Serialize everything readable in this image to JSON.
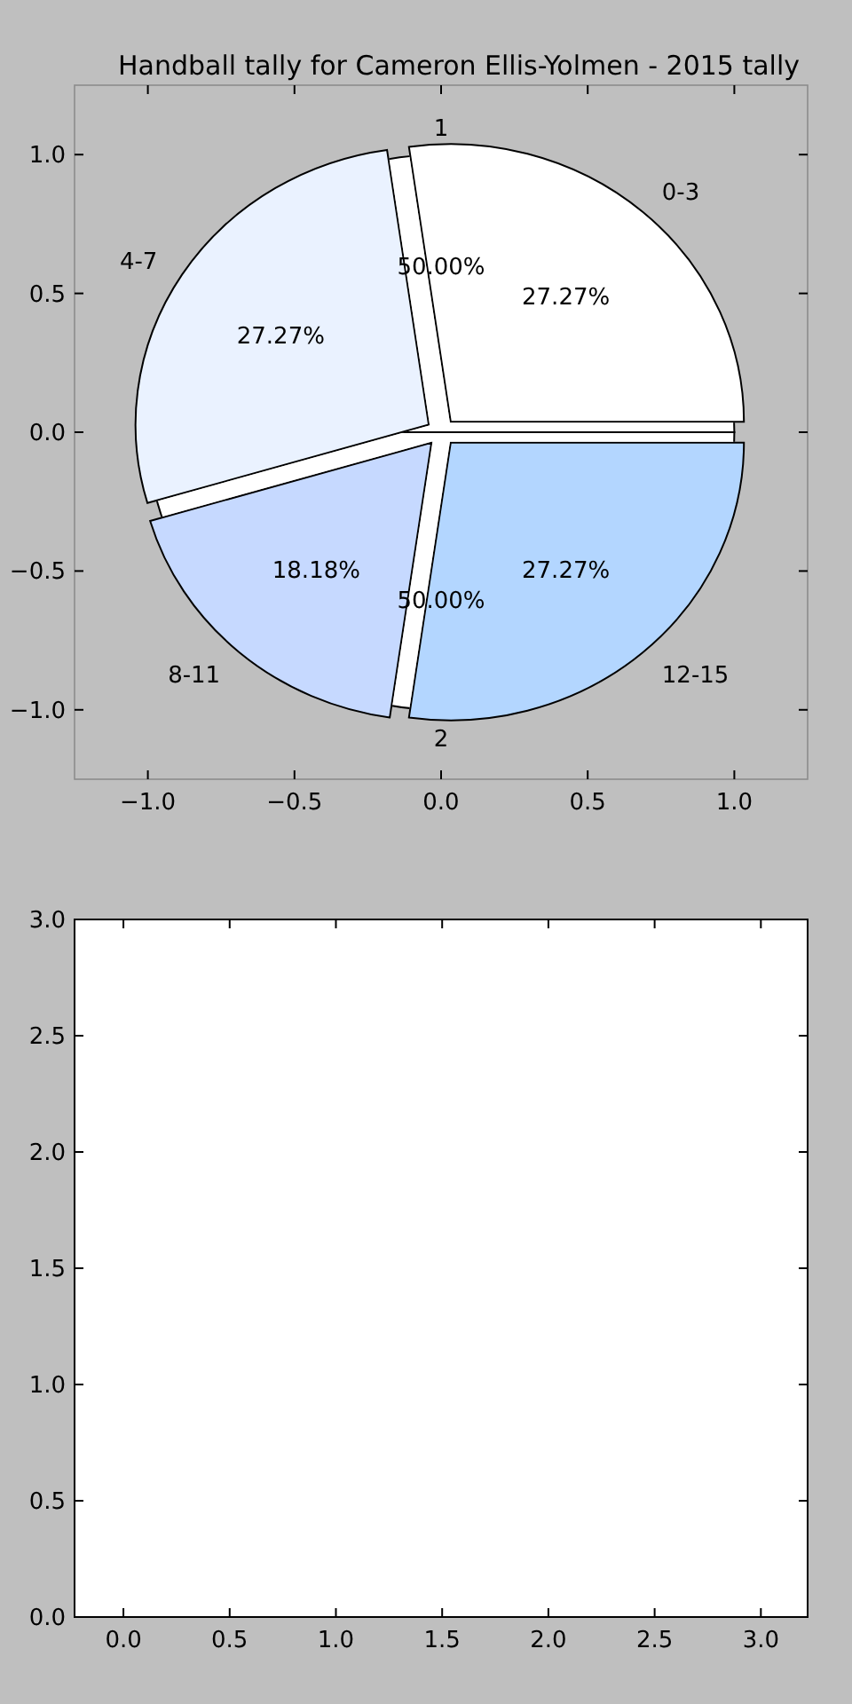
{
  "chart_data": [
    {
      "type": "scatter",
      "title": "Handball tally for Cameron Ellis-Yolmen - 2015 tally",
      "xlim": [
        -1.25,
        1.25
      ],
      "ylim": [
        -1.25,
        1.25
      ],
      "xticks": [
        {
          "value": -1,
          "label": "−1.0"
        },
        {
          "value": -0.5,
          "label": "−0.5"
        },
        {
          "value": 0,
          "label": "0.0"
        },
        {
          "value": 0.5,
          "label": "0.5"
        },
        {
          "value": 1,
          "label": "1.0"
        }
      ],
      "yticks": [
        {
          "value": -1,
          "label": "−1.0"
        },
        {
          "value": -0.5,
          "label": "−0.5"
        },
        {
          "value": 0,
          "label": "0.0"
        },
        {
          "value": 0.5,
          "label": "0.5"
        },
        {
          "value": 1,
          "label": "1.0"
        }
      ]
    },
    {
      "type": "pie",
      "categories": [
        "0-3",
        "4-7",
        "8-11",
        "12-15"
      ],
      "values": [
        27.27,
        27.27,
        18.18,
        27.27
      ],
      "value_labels": [
        "27.27%",
        "27.27%",
        "18.18%",
        "27.27%"
      ],
      "colors": [
        "#ffffff",
        "#eaf2ff",
        "#c6d9ff",
        "#b3d6ff"
      ]
    },
    {
      "type": "pie",
      "categories": [
        "1",
        "2"
      ],
      "values": [
        50,
        50
      ],
      "value_labels": [
        "50.00%",
        "50.00%"
      ],
      "colors": [
        "#ffffff",
        "#ffffff"
      ]
    },
    {
      "type": "scatter",
      "xlim": [
        -0.23,
        3.22
      ],
      "ylim": [
        0,
        3
      ],
      "xticks": [
        {
          "value": 0,
          "label": "0.0"
        },
        {
          "value": 0.5,
          "label": "0.5"
        },
        {
          "value": 1,
          "label": "1.0"
        },
        {
          "value": 1.5,
          "label": "1.5"
        },
        {
          "value": 2,
          "label": "2.0"
        },
        {
          "value": 2.5,
          "label": "2.5"
        },
        {
          "value": 3,
          "label": "3.0"
        }
      ],
      "yticks": [
        {
          "value": 0,
          "label": "0.0"
        },
        {
          "value": 0.5,
          "label": "0.5"
        },
        {
          "value": 1,
          "label": "1.0"
        },
        {
          "value": 1.5,
          "label": "1.5"
        },
        {
          "value": 2,
          "label": "2.0"
        },
        {
          "value": 2.5,
          "label": "2.5"
        },
        {
          "value": 3,
          "label": "3.0"
        }
      ]
    }
  ]
}
